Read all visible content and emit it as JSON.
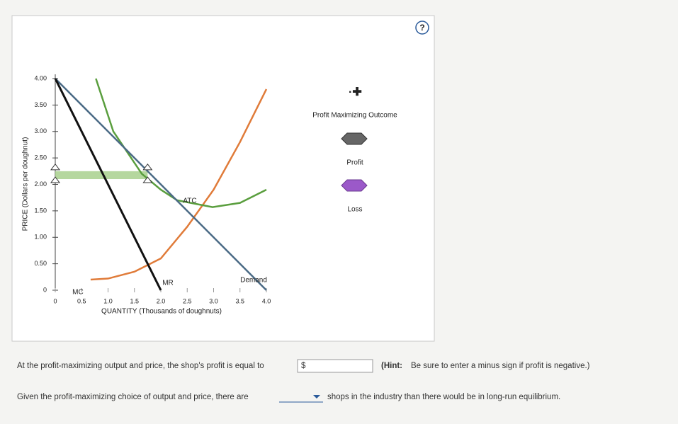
{
  "chart_data": {
    "type": "line",
    "ylabel": "PRICE (Dollars per doughnut)",
    "xlabel": "QUANTITY (Thousands of doughnuts)",
    "xlim": [
      0,
      4
    ],
    "ylim": [
      0,
      4
    ],
    "xticks": [
      0,
      0.5,
      {
        "value": 1,
        "label": "1.0"
      },
      1.5,
      {
        "value": 2,
        "label": "2.0"
      },
      2.5,
      {
        "value": 3,
        "label": "3.0"
      },
      3.5,
      {
        "value": 4,
        "label": "4.0"
      }
    ],
    "yticks": [
      0,
      {
        "value": 0.5,
        "label": "0.50"
      },
      {
        "value": 1,
        "label": "1.00"
      },
      {
        "value": 1.5,
        "label": "1.50"
      },
      {
        "value": 2,
        "label": "2.00"
      },
      {
        "value": 2.5,
        "label": "2.50"
      },
      {
        "value": 3,
        "label": "3.00"
      },
      {
        "value": 3.5,
        "label": "3.50"
      },
      {
        "value": 4,
        "label": "4.00"
      }
    ],
    "series": [
      {
        "name": "MC",
        "color": "#e07b39",
        "x": [
          0.67,
          1.0,
          1.5,
          2.0,
          2.5,
          3.0,
          3.5,
          4.0
        ],
        "values": [
          0.2,
          0.22,
          0.35,
          0.6,
          1.2,
          1.9,
          2.8,
          3.8
        ]
      },
      {
        "name": "ATC",
        "color": "#5a9e3e",
        "x": [
          0.77,
          1.1,
          1.64,
          2.0,
          2.31,
          2.98,
          3.5,
          4.0
        ],
        "values": [
          4.0,
          3.0,
          2.2,
          1.9,
          1.7,
          1.57,
          1.65,
          1.9
        ]
      },
      {
        "name": "Demand",
        "color": "#4a6a85",
        "x": [
          0,
          4
        ],
        "values": [
          4,
          0
        ]
      },
      {
        "name": "MR",
        "color": "#111111",
        "x": [
          0,
          2
        ],
        "values": [
          4,
          0
        ]
      }
    ],
    "shaded_area": {
      "color": "#a8d08d",
      "x": [
        0,
        1.75
      ],
      "y": [
        2.1,
        2.25
      ]
    }
  },
  "help": "?",
  "palette": {
    "title": "Profit Maximizing Outcome",
    "items": [
      "Profit",
      "Loss"
    ]
  },
  "question_1": {
    "text": "At the profit-maximizing output and price, the shop's profit is equal to",
    "currency": "$",
    "hint_label": "(Hint:",
    "hint_text": "Be sure to enter a minus sign if profit is negative.)"
  },
  "question_2": {
    "before": "Given the profit-maximizing choice of output and price, there are",
    "after": "shops in the industry than there would be in long-run equilibrium."
  }
}
